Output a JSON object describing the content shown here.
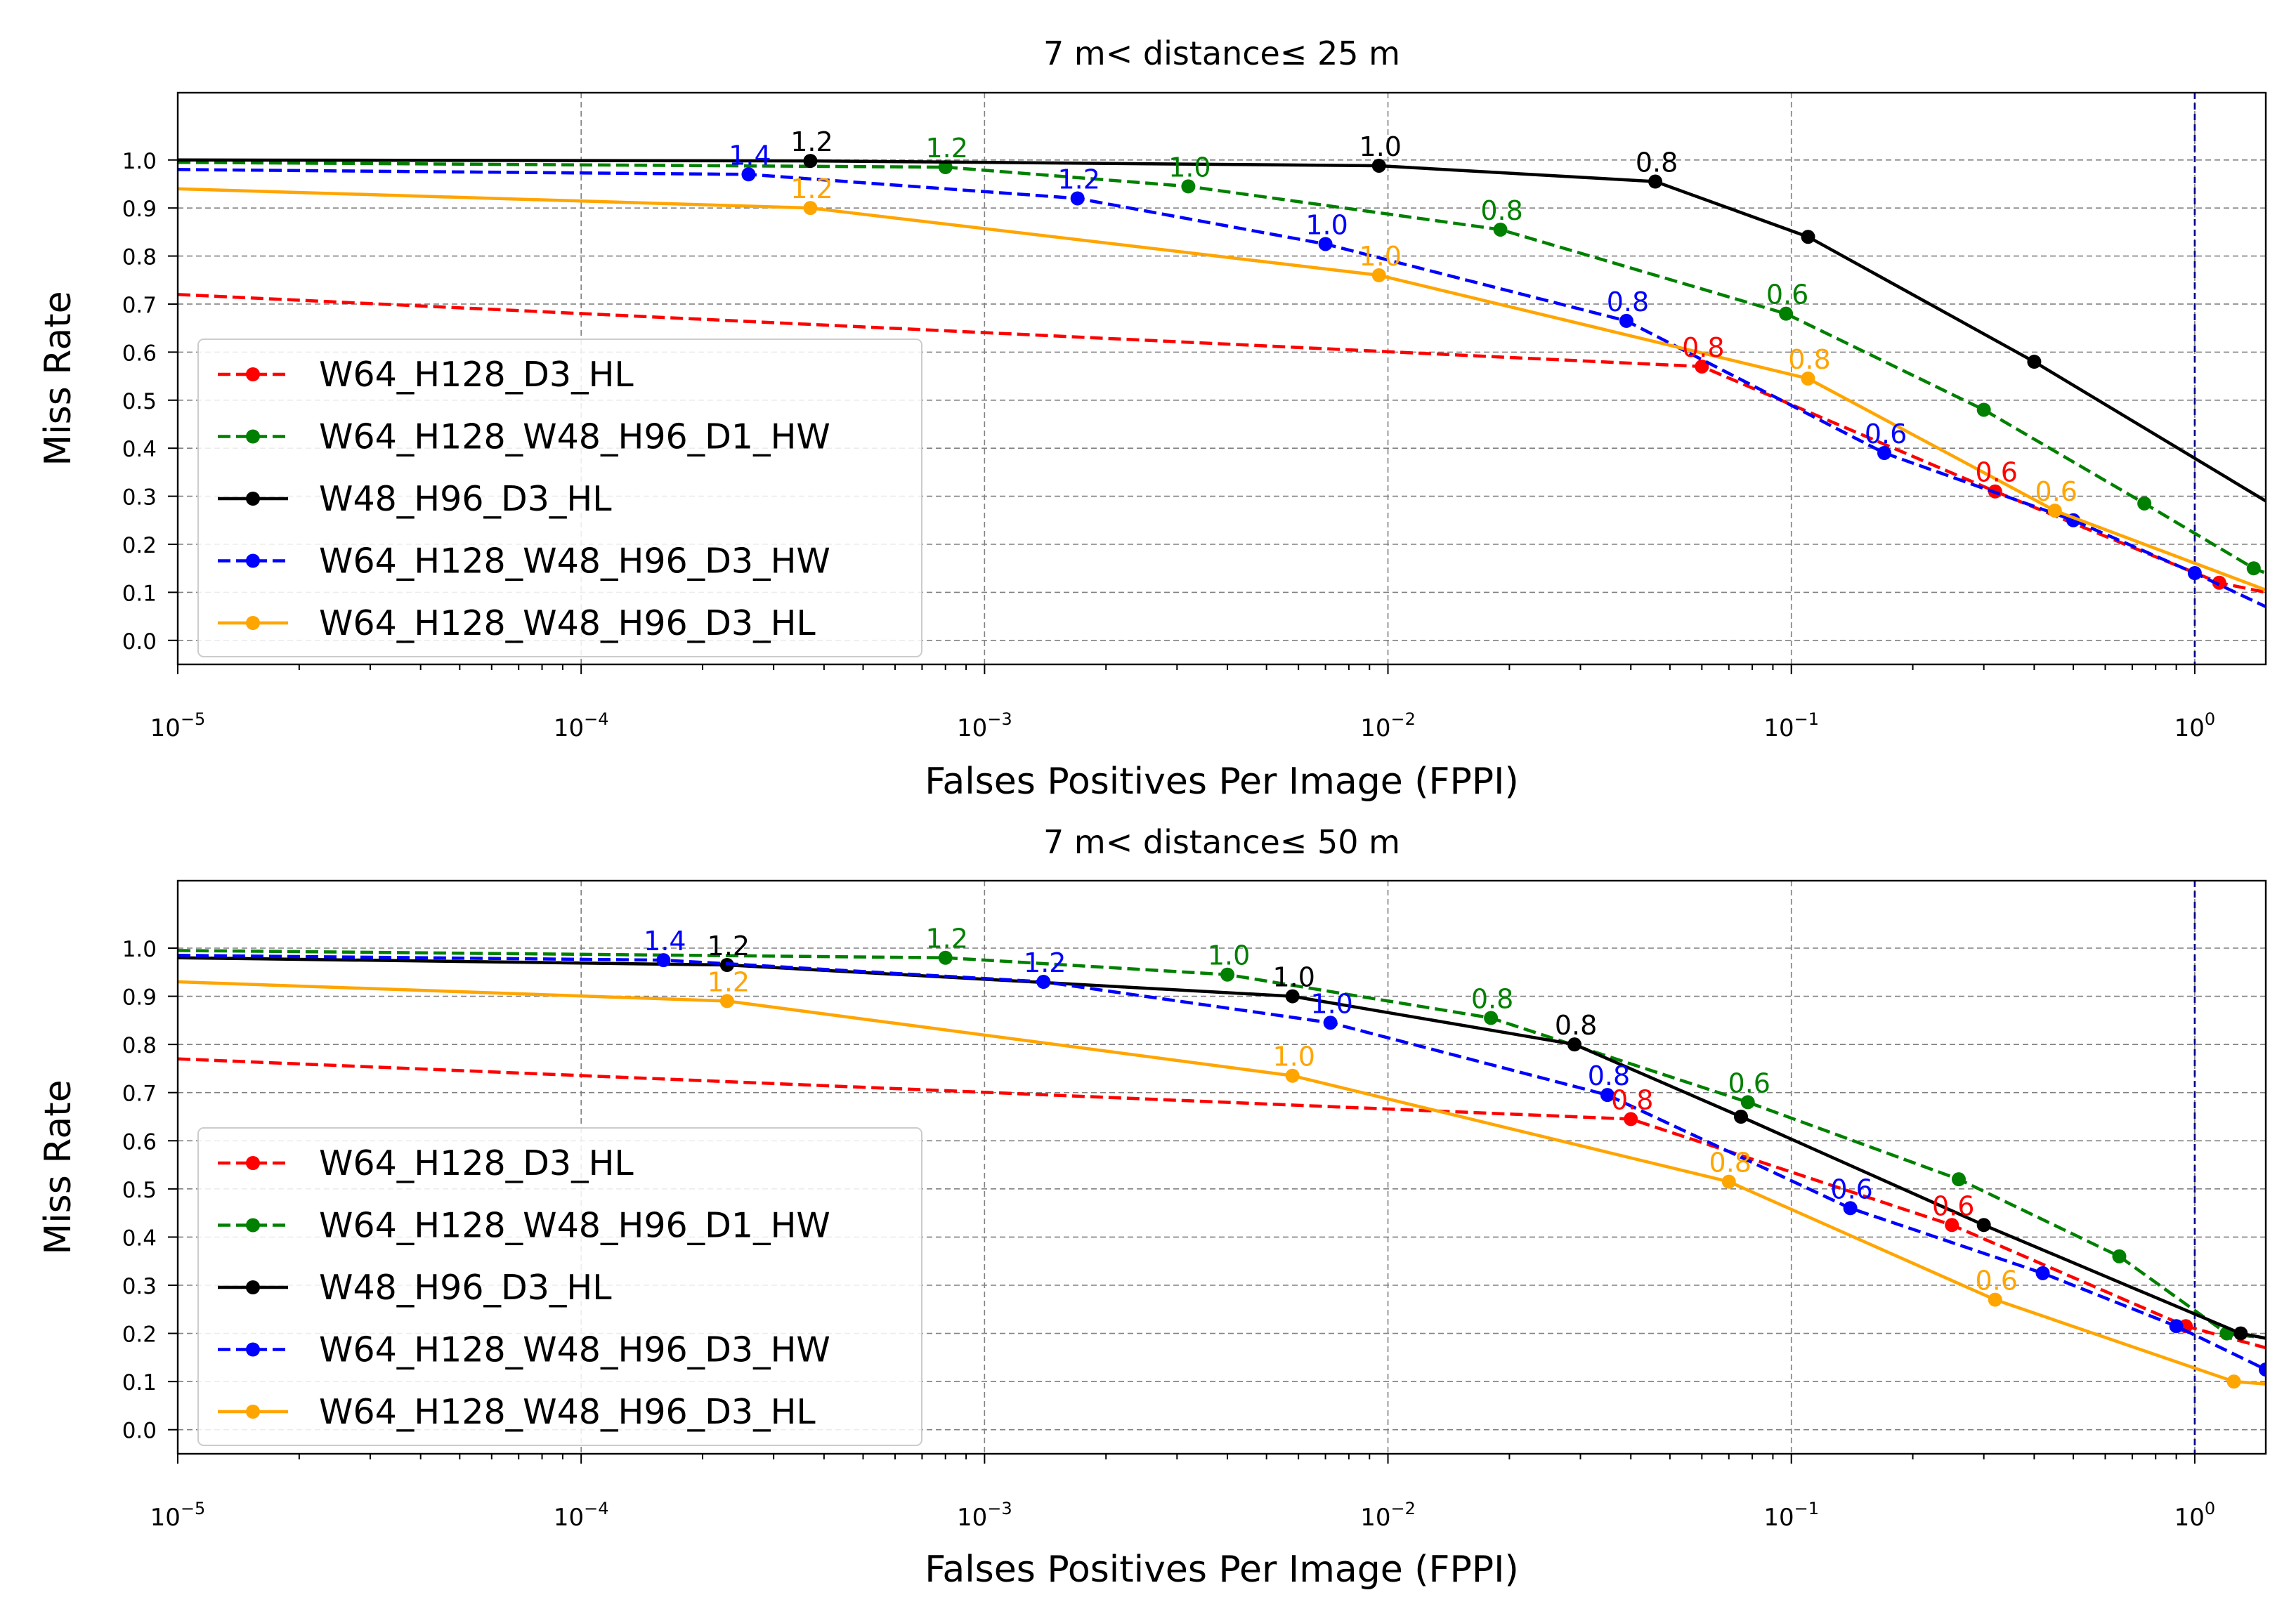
{
  "chart_data": [
    {
      "type": "line",
      "title": "7 m< distance≤ 25 m",
      "xlabel": "Falses Positives Per Image (FPPI)",
      "ylabel": "Miss Rate",
      "xscale": "log",
      "xlim": [
        1e-05,
        1.5
      ],
      "ylim": [
        -0.05,
        1.14
      ],
      "xticks": [
        {
          "value": 1e-05,
          "base": "10",
          "exp": "−5"
        },
        {
          "value": 0.0001,
          "base": "10",
          "exp": "−4"
        },
        {
          "value": 0.001,
          "base": "10",
          "exp": "−3"
        },
        {
          "value": 0.01,
          "base": "10",
          "exp": "−2"
        },
        {
          "value": 0.1,
          "base": "10",
          "exp": "−1"
        },
        {
          "value": 1,
          "base": "10",
          "exp": "0"
        }
      ],
      "yticks": [
        "0.0",
        "0.1",
        "0.2",
        "0.3",
        "0.4",
        "0.5",
        "0.6",
        "0.7",
        "0.8",
        "0.9",
        "1.0"
      ],
      "vline": {
        "x": 1,
        "color": "#00008b"
      },
      "legend": "center-left",
      "series": [
        {
          "name": "W64_H128_D3_HL",
          "color": "#ff0000",
          "dash": true,
          "x": [
            1e-05,
            0.06,
            0.32,
            1.15,
            1.5
          ],
          "y": [
            0.72,
            0.57,
            0.31,
            0.12,
            0.1
          ],
          "markers": [
            false,
            true,
            true,
            true,
            false
          ],
          "labels": [
            null,
            "0.8",
            "0.6",
            null,
            null
          ]
        },
        {
          "name": "W64_H128_W48_H96_D1_HW",
          "color": "#008000",
          "dash": true,
          "x": [
            1e-05,
            0.0008,
            0.0032,
            0.019,
            0.097,
            0.3,
            0.75,
            1.4,
            1.5
          ],
          "y": [
            0.995,
            0.985,
            0.945,
            0.855,
            0.68,
            0.48,
            0.285,
            0.15,
            0.14
          ],
          "markers": [
            false,
            true,
            true,
            true,
            true,
            true,
            true,
            true,
            false
          ],
          "labels": [
            null,
            "1.2",
            "1.0",
            "0.8",
            "0.6",
            null,
            null,
            null,
            null
          ]
        },
        {
          "name": "W48_H96_D3_HL",
          "color": "#000000",
          "dash": false,
          "x": [
            1e-05,
            0.00037,
            0.0095,
            0.046,
            0.11,
            0.4,
            1.5
          ],
          "y": [
            1.0,
            0.998,
            0.988,
            0.955,
            0.84,
            0.58,
            0.29
          ],
          "markers": [
            false,
            true,
            true,
            true,
            true,
            true,
            false
          ],
          "labels": [
            null,
            "1.2",
            "1.0",
            "0.8",
            null,
            null,
            null
          ]
        },
        {
          "name": "W64_H128_W48_H96_D3_HW",
          "color": "#0000ff",
          "dash": true,
          "x": [
            1e-05,
            0.00026,
            0.0017,
            0.007,
            0.039,
            0.17,
            0.5,
            1.0,
            1.5
          ],
          "y": [
            0.98,
            0.97,
            0.92,
            0.825,
            0.665,
            0.39,
            0.25,
            0.14,
            0.07
          ],
          "markers": [
            false,
            true,
            true,
            true,
            true,
            true,
            true,
            true,
            false
          ],
          "labels": [
            null,
            "1.4",
            "1.2",
            "1.0",
            "0.8",
            "0.6",
            null,
            null,
            null
          ]
        },
        {
          "name": "W64_H128_W48_H96_D3_HL",
          "color": "#ffa500",
          "dash": false,
          "x": [
            1e-05,
            0.00037,
            0.0095,
            0.11,
            0.45,
            1.5
          ],
          "y": [
            0.94,
            0.9,
            0.76,
            0.545,
            0.27,
            0.105
          ],
          "markers": [
            false,
            true,
            true,
            true,
            true,
            false
          ],
          "labels": [
            null,
            "1.2",
            "1.0",
            "0.8",
            "0.6",
            null
          ]
        }
      ]
    },
    {
      "type": "line",
      "title": "7 m< distance≤ 50 m",
      "xlabel": "Falses Positives Per Image (FPPI)",
      "ylabel": "Miss Rate",
      "xscale": "log",
      "xlim": [
        1e-05,
        1.5
      ],
      "ylim": [
        -0.05,
        1.14
      ],
      "xticks": [
        {
          "value": 1e-05,
          "base": "10",
          "exp": "−5"
        },
        {
          "value": 0.0001,
          "base": "10",
          "exp": "−4"
        },
        {
          "value": 0.001,
          "base": "10",
          "exp": "−3"
        },
        {
          "value": 0.01,
          "base": "10",
          "exp": "−2"
        },
        {
          "value": 0.1,
          "base": "10",
          "exp": "−1"
        },
        {
          "value": 1,
          "base": "10",
          "exp": "0"
        }
      ],
      "yticks": [
        "0.0",
        "0.1",
        "0.2",
        "0.3",
        "0.4",
        "0.5",
        "0.6",
        "0.7",
        "0.8",
        "0.9",
        "1.0"
      ],
      "vline": {
        "x": 1,
        "color": "#00008b"
      },
      "legend": "lower-left",
      "series": [
        {
          "name": "W64_H128_D3_HL",
          "color": "#ff0000",
          "dash": true,
          "x": [
            1e-05,
            0.04,
            0.25,
            0.95,
            1.5
          ],
          "y": [
            0.77,
            0.645,
            0.425,
            0.215,
            0.17
          ],
          "markers": [
            false,
            true,
            true,
            true,
            false
          ],
          "labels": [
            null,
            "0.8",
            "0.6",
            null,
            null
          ]
        },
        {
          "name": "W64_H128_W48_H96_D1_HW",
          "color": "#008000",
          "dash": true,
          "x": [
            1e-05,
            0.0008,
            0.004,
            0.018,
            0.078,
            0.26,
            0.65,
            1.2,
            1.5
          ],
          "y": [
            0.995,
            0.98,
            0.945,
            0.855,
            0.68,
            0.52,
            0.36,
            0.2,
            0.19
          ],
          "markers": [
            false,
            true,
            true,
            true,
            true,
            true,
            true,
            true,
            false
          ],
          "labels": [
            null,
            "1.2",
            "1.0",
            "0.8",
            "0.6",
            null,
            null,
            null,
            null
          ]
        },
        {
          "name": "W48_H96_D3_HL",
          "color": "#000000",
          "dash": false,
          "x": [
            1e-05,
            0.00023,
            0.0058,
            0.029,
            0.075,
            0.3,
            1.3,
            1.5
          ],
          "y": [
            0.98,
            0.965,
            0.9,
            0.8,
            0.65,
            0.425,
            0.2,
            0.19
          ],
          "markers": [
            false,
            true,
            true,
            true,
            true,
            true,
            true,
            false
          ],
          "labels": [
            null,
            "1.2",
            "1.0",
            "0.8",
            null,
            null,
            null,
            null
          ]
        },
        {
          "name": "W64_H128_W48_H96_D3_HW",
          "color": "#0000ff",
          "dash": true,
          "x": [
            1e-05,
            0.00016,
            0.0014,
            0.0072,
            0.035,
            0.14,
            0.42,
            0.9,
            1.5
          ],
          "y": [
            0.985,
            0.975,
            0.93,
            0.845,
            0.695,
            0.46,
            0.325,
            0.215,
            0.125
          ],
          "markers": [
            false,
            true,
            true,
            true,
            true,
            true,
            true,
            true,
            true
          ],
          "labels": [
            null,
            "1.4",
            "1.2",
            "1.0",
            "0.8",
            "0.6",
            null,
            null,
            null
          ]
        },
        {
          "name": "W64_H128_W48_H96_D3_HL",
          "color": "#ffa500",
          "dash": false,
          "x": [
            1e-05,
            0.00023,
            0.0058,
            0.07,
            0.32,
            1.25,
            1.5
          ],
          "y": [
            0.93,
            0.89,
            0.735,
            0.515,
            0.27,
            0.1,
            0.095
          ],
          "markers": [
            false,
            true,
            true,
            true,
            true,
            true,
            false
          ],
          "labels": [
            null,
            "1.2",
            "1.0",
            "0.8",
            "0.6",
            null,
            null
          ]
        }
      ]
    }
  ]
}
